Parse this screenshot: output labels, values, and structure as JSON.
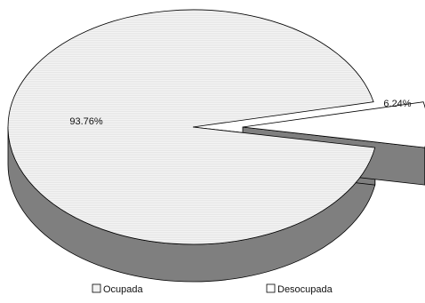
{
  "chart_data": {
    "type": "pie",
    "style": "3d-exploded",
    "title": "",
    "slices": [
      {
        "label": "Ocupada",
        "value": 93.76,
        "value_label": "93.76%",
        "color": "#f2f2f2",
        "side_color": "#7f7f7f"
      },
      {
        "label": "Desocupada",
        "value": 6.24,
        "value_label": "6.24%",
        "color": "#ffffff",
        "side_color": "#7f7f7f"
      }
    ],
    "legend_position": "bottom"
  }
}
